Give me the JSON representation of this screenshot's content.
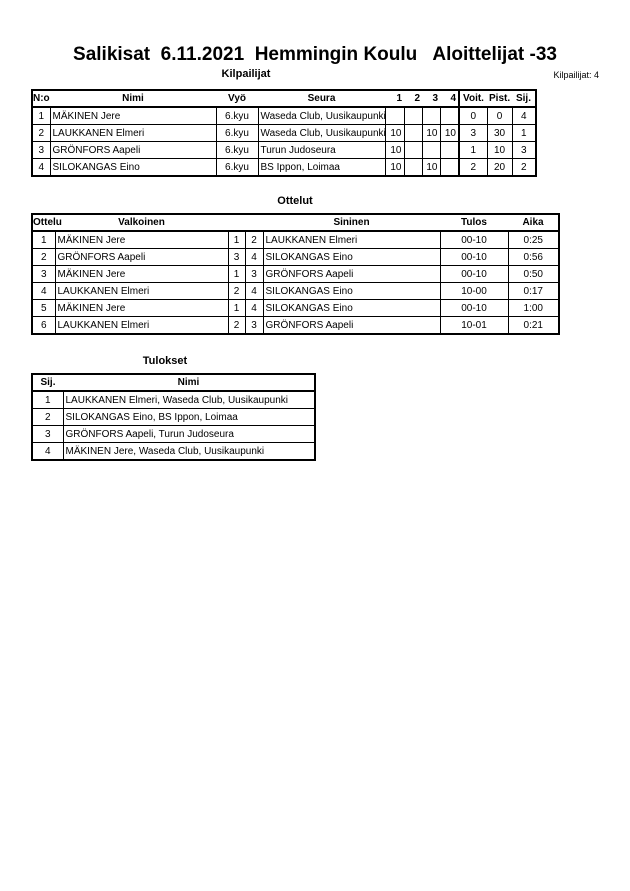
{
  "title": "Salikisat  6.11.2021  Hemmingin Koulu   Aloittelijat -33",
  "competitors": {
    "section_title": "Kilpailijat",
    "count_label": "Kilpailijat: 4",
    "headers": [
      "N:o",
      "Nimi",
      "Vyö",
      "Seura",
      "1",
      "2",
      "3",
      "4",
      "Voit.",
      "Pist.",
      "Sij."
    ],
    "rows": [
      {
        "no": "1",
        "name": "MÄKINEN Jere",
        "belt": "6.kyu",
        "club": "Waseda Club, Uusikaupunki",
        "m1": "",
        "m2": "",
        "m3": "",
        "m4": "",
        "wins": "0",
        "points": "0",
        "place": "4"
      },
      {
        "no": "2",
        "name": "LAUKKANEN Elmeri",
        "belt": "6.kyu",
        "club": "Waseda Club, Uusikaupunki",
        "m1": "10",
        "m2": "",
        "m3": "10",
        "m4": "10",
        "wins": "3",
        "points": "30",
        "place": "1"
      },
      {
        "no": "3",
        "name": "GRÖNFORS Aapeli",
        "belt": "6.kyu",
        "club": "Turun Judoseura",
        "m1": "10",
        "m2": "",
        "m3": "",
        "m4": "",
        "wins": "1",
        "points": "10",
        "place": "3"
      },
      {
        "no": "4",
        "name": "SILOKANGAS Eino",
        "belt": "6.kyu",
        "club": "BS Ippon, Loimaa",
        "m1": "10",
        "m2": "",
        "m3": "10",
        "m4": "",
        "wins": "2",
        "points": "20",
        "place": "2"
      }
    ]
  },
  "matches": {
    "section_title": "Ottelut",
    "headers": [
      "Ottelu",
      "Valkoinen",
      "Sininen",
      "Tulos",
      "Aika"
    ],
    "rows": [
      {
        "no": "1",
        "white": "MÄKINEN Jere",
        "wn": "1",
        "bn": "2",
        "blue": "LAUKKANEN Elmeri",
        "result": "00-10",
        "time": "0:25"
      },
      {
        "no": "2",
        "white": "GRÖNFORS Aapeli",
        "wn": "3",
        "bn": "4",
        "blue": "SILOKANGAS Eino",
        "result": "00-10",
        "time": "0:56"
      },
      {
        "no": "3",
        "white": "MÄKINEN Jere",
        "wn": "1",
        "bn": "3",
        "blue": "GRÖNFORS Aapeli",
        "result": "00-10",
        "time": "0:50"
      },
      {
        "no": "4",
        "white": "LAUKKANEN Elmeri",
        "wn": "2",
        "bn": "4",
        "blue": "SILOKANGAS Eino",
        "result": "10-00",
        "time": "0:17"
      },
      {
        "no": "5",
        "white": "MÄKINEN Jere",
        "wn": "1",
        "bn": "4",
        "blue": "SILOKANGAS Eino",
        "result": "00-10",
        "time": "1:00"
      },
      {
        "no": "6",
        "white": "LAUKKANEN Elmeri",
        "wn": "2",
        "bn": "3",
        "blue": "GRÖNFORS Aapeli",
        "result": "10-01",
        "time": "0:21"
      }
    ]
  },
  "results": {
    "section_title": "Tulokset",
    "headers": [
      "Sij.",
      "Nimi"
    ],
    "rows": [
      {
        "place": "1",
        "name": "LAUKKANEN Elmeri, Waseda Club, Uusikaupunki"
      },
      {
        "place": "2",
        "name": "SILOKANGAS Eino, BS Ippon, Loimaa"
      },
      {
        "place": "3",
        "name": "GRÖNFORS Aapeli, Turun Judoseura"
      },
      {
        "place": "4",
        "name": "MÄKINEN Jere, Waseda Club, Uusikaupunki"
      }
    ]
  }
}
